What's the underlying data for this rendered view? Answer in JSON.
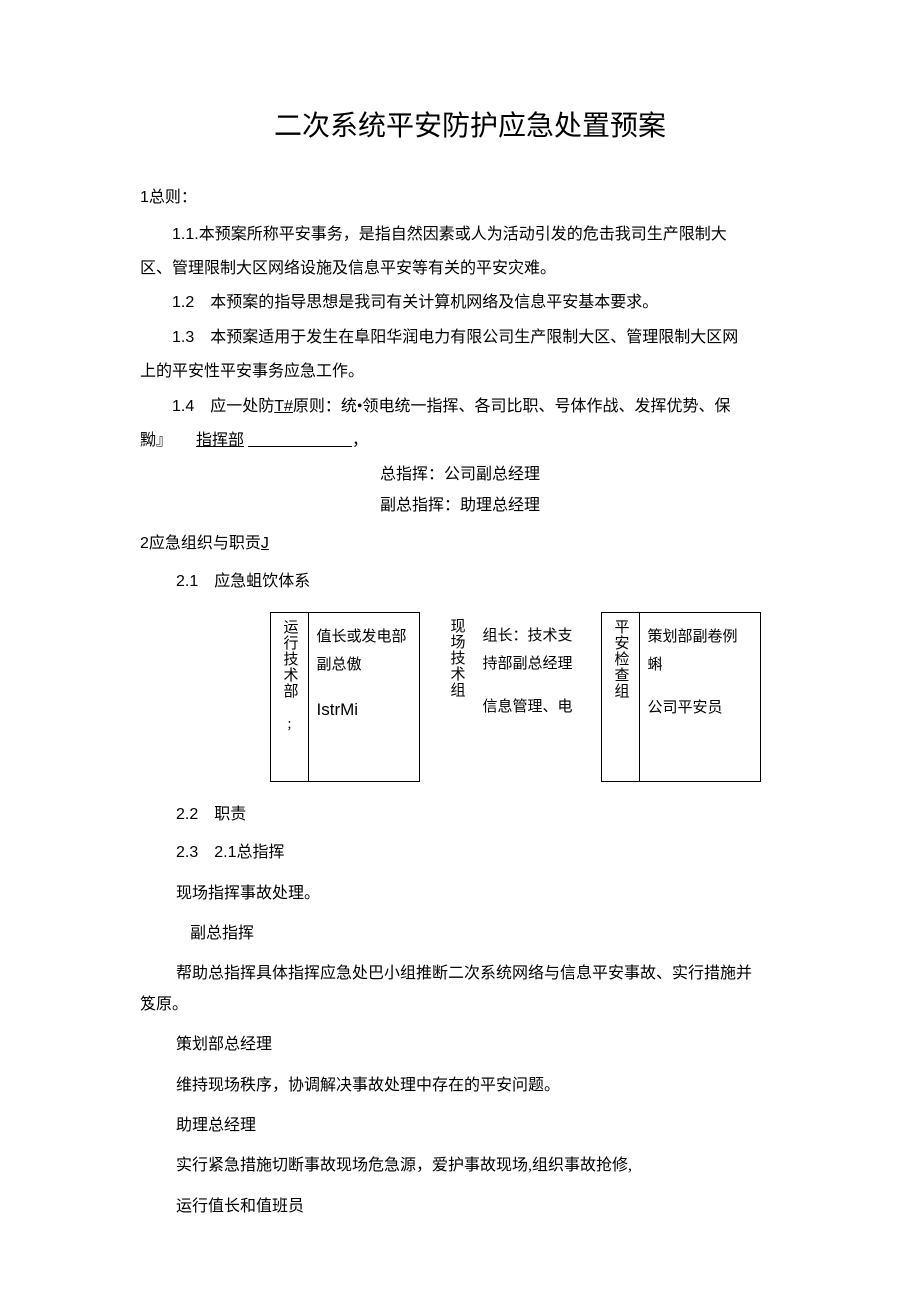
{
  "title": "二次系统平安防护应急处置预案",
  "s1": {
    "head": "1总则：",
    "p11": "1.1.本预案所称平安事务，是指自然因素或人为活动引发的危击我司生产限制大",
    "p11b": "区、管理限制大区网络设施及信息平安等有关的平安灾难。",
    "p12": "1.2　本预案的指导思想是我司有关计算机网络及信息平安基本要求。",
    "p13": "1.3　本预案适用于发生在阜阳华润电力有限公司生产限制大区、管理限制大区网",
    "p13b": "上的平安性平安事务应急工作。",
    "p14a": "1.4　应一处防",
    "p14b": "T#",
    "p14c": "原则：统•领电统一指挥、各司比职、号体作战、发挥优势、保",
    "p14d": "黝』",
    "p14e": "指挥部",
    "p14f": "，",
    "cmd1": "总指挥：公司副总经理",
    "cmd2": "副总指挥：助理总经理"
  },
  "s2": {
    "head": "2应急组织与职贡",
    "headJ": "J",
    "p21": "2.1　应急蛆饮体系",
    "box1": {
      "label": "运行技术部 ;",
      "line1": "值长或发电部副总傲",
      "line2": "IstrMi"
    },
    "box2": {
      "label": "现场技术组",
      "line1": "组长：技术支持部副总经理",
      "line2": "信息管理、电"
    },
    "box3": {
      "label": "平安检查组",
      "line1": "策划部副卷例蝌",
      "line2": "公司平安员"
    },
    "p22": "2.2　职责",
    "p23": "2.3　2.1总指挥",
    "r1": "现场指挥事故处理。",
    "r2t": "副总指挥",
    "r2": "帮助总指挥具体指挥应急处巴小组推断二次系统网络与信息平安事故、实行措施并",
    "r2b": "笈原。",
    "r3t": "策划部总经理",
    "r3": "维持现场秩序，协调解决事故处理中存在的平安问题。",
    "r4t": "助理总经理",
    "r4": "实行紧急措施切断事故现场危急源，爱护事故现场,组织事故抢修,",
    "r5t": "运行值长和值班员"
  }
}
